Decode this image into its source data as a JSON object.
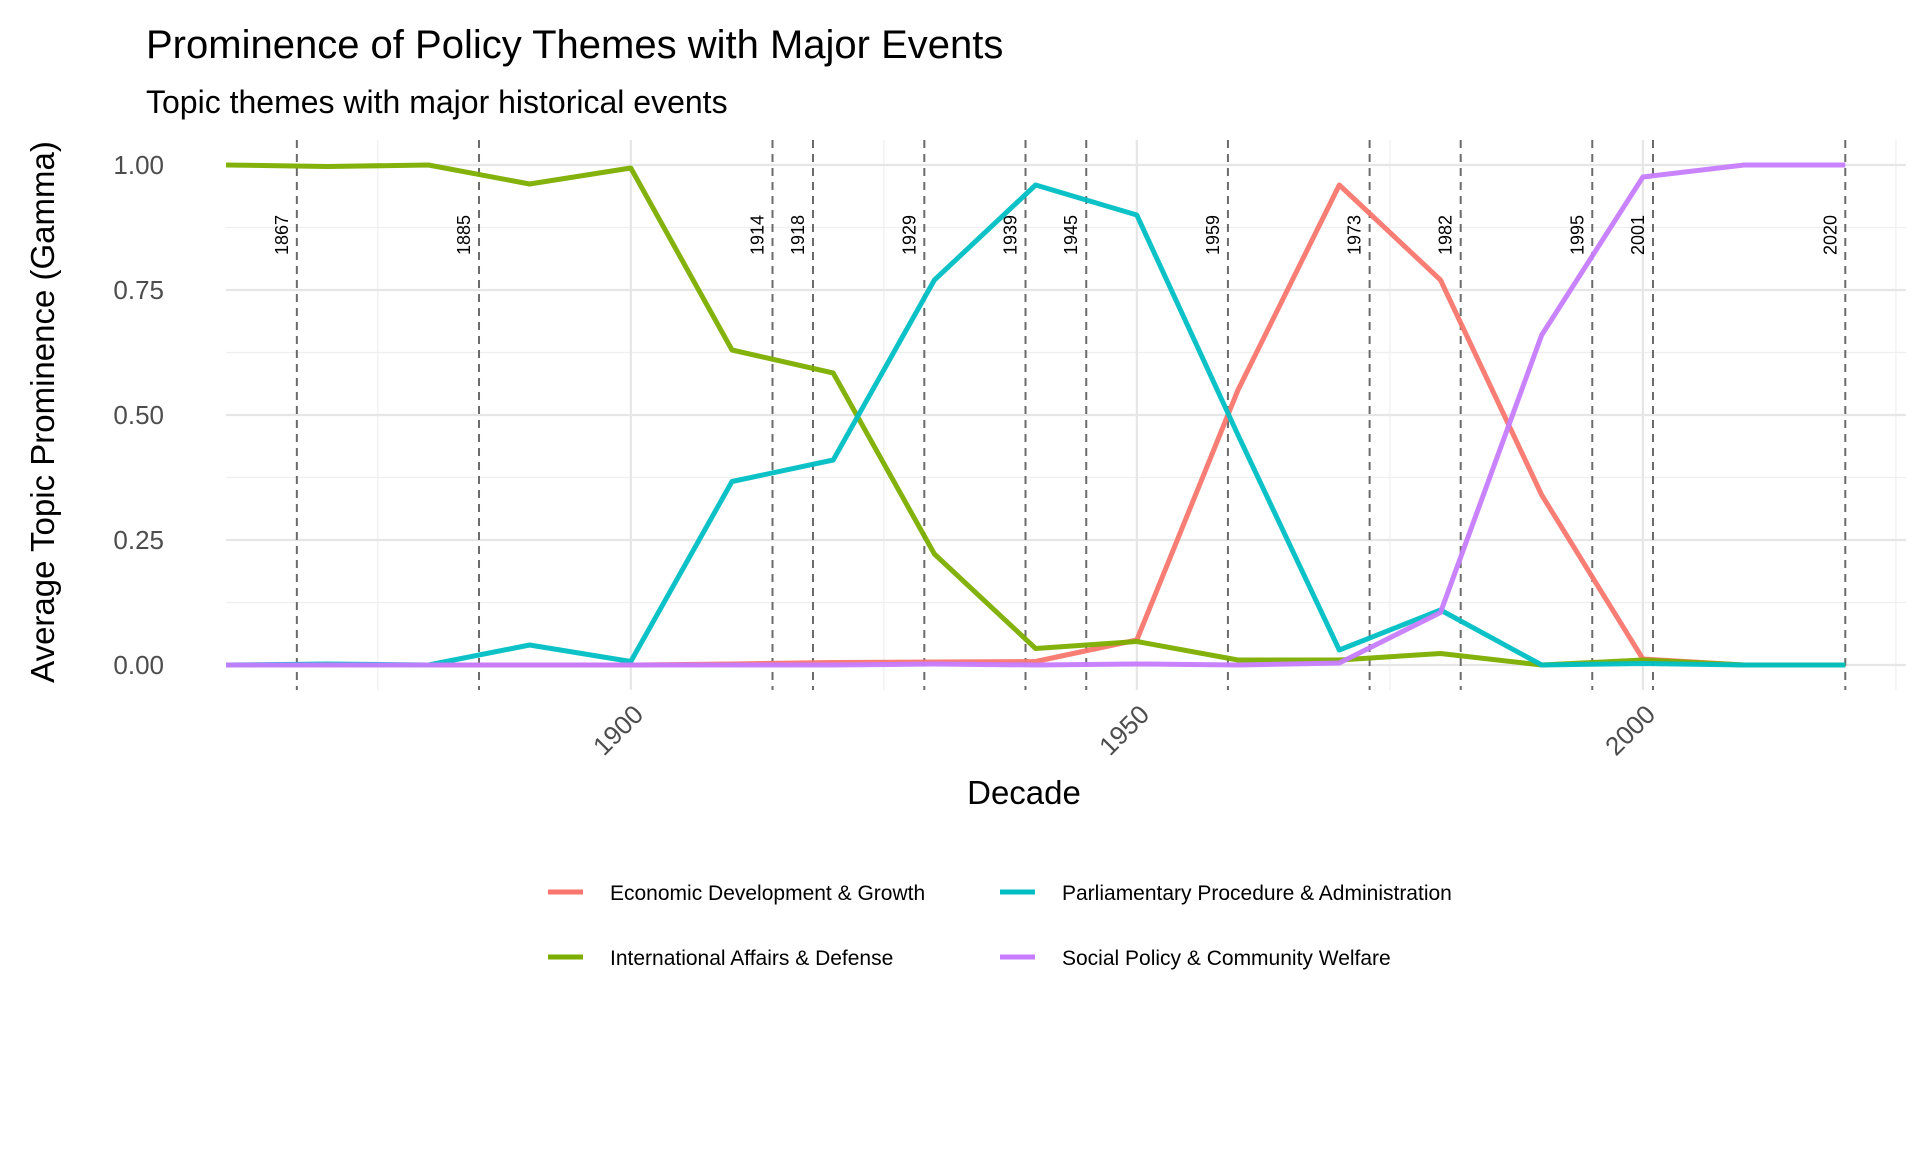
{
  "chart_data": {
    "type": "line",
    "title": "Prominence of Policy Themes with Major Events",
    "subtitle": "Topic themes with major historical events",
    "xlabel": "Decade",
    "ylabel": "Average Topic Prominence (Gamma)",
    "xlim": [
      1860,
      2026
    ],
    "ylim": [
      -0.05,
      1.05
    ],
    "x_ticks": [
      1900,
      1950,
      2000
    ],
    "y_ticks": [
      0,
      0.25,
      0.5,
      0.75,
      1.0
    ],
    "y_tick_labels": [
      "0.00",
      "0.25",
      "0.50",
      "0.75",
      "1.00"
    ],
    "grid": true,
    "legend_position": "bottom",
    "x": [
      1860,
      1870,
      1880,
      1890,
      1900,
      1910,
      1920,
      1930,
      1940,
      1950,
      1960,
      1970,
      1980,
      1990,
      2000,
      2010,
      2020
    ],
    "series": [
      {
        "name": "Economic Development & Growth",
        "color": "#F8766D",
        "values": [
          0.0,
          0.0,
          0.0,
          0.0,
          0.0,
          0.002,
          0.005,
          0.006,
          0.007,
          0.05,
          0.55,
          0.96,
          0.77,
          0.34,
          0.012,
          0.0,
          0.0
        ]
      },
      {
        "name": "International Affairs & Defense",
        "color": "#7CAE00",
        "values": [
          1.0,
          0.997,
          1.0,
          0.962,
          0.994,
          0.63,
          0.584,
          0.222,
          0.033,
          0.047,
          0.01,
          0.01,
          0.023,
          0.0,
          0.01,
          0.0,
          0.0
        ]
      },
      {
        "name": "Parliamentary Procedure & Administration",
        "color": "#00BFC4",
        "values": [
          0.0,
          0.002,
          0.0,
          0.04,
          0.007,
          0.367,
          0.41,
          0.77,
          0.96,
          0.9,
          0.46,
          0.03,
          0.11,
          0.0,
          0.003,
          0.0,
          0.0
        ]
      },
      {
        "name": "Social Policy & Community Welfare",
        "color": "#C77CFF",
        "values": [
          0.0,
          0.0,
          0.0,
          0.0,
          0.0,
          0.0,
          0.0,
          0.002,
          0.0,
          0.002,
          0.0,
          0.004,
          0.105,
          0.66,
          0.976,
          1.0,
          1.0
        ]
      }
    ],
    "events": [
      {
        "year": 1867,
        "label": "1867"
      },
      {
        "year": 1885,
        "label": "1885"
      },
      {
        "year": 1914,
        "label": "1914"
      },
      {
        "year": 1918,
        "label": "1918"
      },
      {
        "year": 1929,
        "label": "1929"
      },
      {
        "year": 1939,
        "label": "1939"
      },
      {
        "year": 1945,
        "label": "1945"
      },
      {
        "year": 1959,
        "label": "1959"
      },
      {
        "year": 1973,
        "label": "1973"
      },
      {
        "year": 1982,
        "label": "1982"
      },
      {
        "year": 1995,
        "label": "1995"
      },
      {
        "year": 2001,
        "label": "2001"
      },
      {
        "year": 2020,
        "label": "2020"
      }
    ],
    "legend_layout": [
      [
        "Economic Development & Growth",
        "Parliamentary Procedure & Administration"
      ],
      [
        "International Affairs & Defense",
        "Social Policy & Community Welfare"
      ]
    ]
  }
}
